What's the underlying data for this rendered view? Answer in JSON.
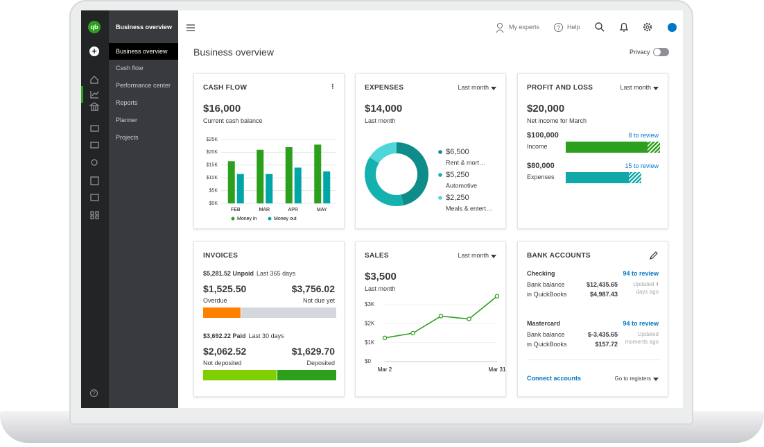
{
  "sidebar": {
    "header": "Business overview",
    "nav": [
      "Business overview",
      "Cash flow",
      "Performance center",
      "Reports",
      "Planner",
      "Projects"
    ]
  },
  "topbar": {
    "experts": "My experts",
    "help": "Help"
  },
  "page": {
    "title": "Business overview",
    "privacy": "Privacy"
  },
  "cards": {
    "cash_flow": {
      "title": "CASH FLOW",
      "amount": "$16,000",
      "caption": "Current cash balance",
      "chart_data": {
        "type": "bar",
        "categories": [
          "FEB",
          "MAR",
          "APR",
          "MAY"
        ],
        "series": [
          {
            "name": "Money in",
            "color": "#2ca01c",
            "values": [
              16.5,
              21,
              22,
              23
            ]
          },
          {
            "name": "Money out",
            "color": "#00a6a4",
            "values": [
              11.5,
              11.5,
              14,
              12.5
            ]
          }
        ],
        "ylim": [
          0,
          25
        ],
        "yticks": [
          {
            "value": 0,
            "label": "$0K"
          },
          {
            "value": 5,
            "label": "$5K"
          },
          {
            "value": 10,
            "label": "$10K"
          },
          {
            "value": 15,
            "label": "$15K"
          },
          {
            "value": 20,
            "label": "$20K"
          },
          {
            "value": 25,
            "label": "$25K"
          }
        ],
        "grid": true
      }
    },
    "expenses": {
      "title": "EXPENSES",
      "period": "Last month",
      "amount": "$14,000",
      "caption": "Last month",
      "chart_data": {
        "type": "pie",
        "categories": [
          "Rent & mort…",
          "Automotive",
          "Meals & entert…"
        ],
        "values": [
          6500,
          5250,
          2250
        ],
        "value_labels": [
          "$6,500",
          "$5,250",
          "$2,250"
        ],
        "colors": [
          "#0e8c89",
          "#14b1ae",
          "#4fd6d8"
        ]
      }
    },
    "profit_loss": {
      "title": "PROFIT AND LOSS",
      "period": "Last month",
      "amount": "$20,000",
      "caption": "Net income for March",
      "chart_data": {
        "type": "bar",
        "orientation": "horizontal",
        "categories": [
          "Income",
          "Expenses"
        ],
        "values": [
          100000,
          80000
        ],
        "value_labels": [
          "$100,000",
          "$80,000"
        ],
        "reviews": [
          "8 to review",
          "15 to review"
        ],
        "colors": [
          "#2ca01c",
          "#13a8a8"
        ]
      }
    },
    "invoices": {
      "title": "INVOICES",
      "groups": [
        {
          "label": "$5,281.52 Unpaid",
          "period": "Last 365 days",
          "segments": [
            {
              "value": 1525.5,
              "value_label": "$1,525.50",
              "label": "Overdue",
              "color": "#ff8000"
            },
            {
              "value": 3756.02,
              "value_label": "$3,756.02",
              "label": "Not due yet",
              "color": "#d4d7dc"
            }
          ]
        },
        {
          "label": "$3,692.22 Paid",
          "period": "Last 30 days",
          "segments": [
            {
              "value": 2062.52,
              "value_label": "$2,062.52",
              "label": "Not deposited",
              "color": "#7fd000"
            },
            {
              "value": 1629.7,
              "value_label": "$1,629.70",
              "label": "Deposited",
              "color": "#2ca01c"
            }
          ]
        }
      ]
    },
    "sales": {
      "title": "SALES",
      "period": "Last month",
      "amount": "$3,500",
      "caption": "Last month",
      "chart_data": {
        "type": "line",
        "categories": [
          "Mar 2",
          null,
          null,
          null,
          "Mar 31"
        ],
        "values": [
          1.25,
          1.5,
          2.4,
          2.25,
          3.45
        ],
        "color": "#2ca01c",
        "ylim": [
          0,
          3.5
        ],
        "yticks": [
          {
            "value": 0,
            "label": "$0"
          },
          {
            "value": 1,
            "label": "$1K"
          },
          {
            "value": 2,
            "label": "$2K"
          },
          {
            "value": 3,
            "label": "$3K"
          }
        ],
        "grid": true
      }
    },
    "bank_accounts": {
      "title": "BANK ACCOUNTS",
      "accounts": [
        {
          "name": "Checking",
          "review": "94 to review",
          "bank_label": "Bank balance",
          "bank": "$12,435.65",
          "qb_label": "in QuickBooks",
          "qb": "$4,987.43",
          "updated": "Updated 4 days ago"
        },
        {
          "name": "Mastercard",
          "review": "94 to review",
          "bank_label": "Bank balance",
          "bank": "$-3,435.65",
          "qb_label": "in QuickBooks",
          "qb": "$157.72",
          "updated": "Updated moments ago"
        }
      ],
      "connect": "Connect accounts",
      "registers": "Go to registers"
    }
  }
}
